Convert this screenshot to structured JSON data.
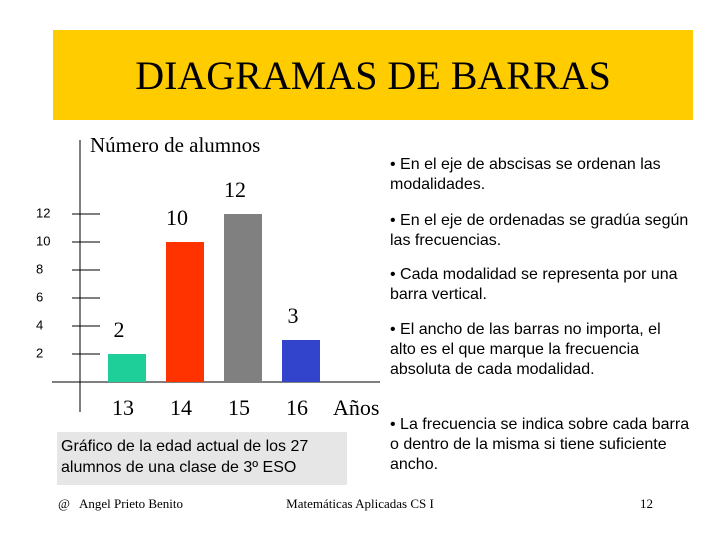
{
  "slide": {
    "title": "DIAGRAMAS DE BARRAS",
    "bullets": [
      "• En el eje de abscisas se ordenan las modalidades.",
      "• En el eje de ordenadas se gradúa según las frecuencias.",
      "• Cada modalidad se representa por una barra vertical.",
      "• El ancho de las barras no importa, el alto es el que marque la frecuencia absoluta de cada modalidad.",
      "• La frecuencia se indica sobre cada barra o dentro de la misma si tiene suficiente ancho."
    ],
    "caption": "Gráfico de la edad actual de los 27 alumnos de una clase de 3º ESO",
    "footer": {
      "author": "@   Angel Prieto Benito",
      "course": "Matemáticas Aplicadas CS I",
      "page": "12"
    }
  },
  "chart_data": {
    "type": "bar",
    "y_label": "Número de alumnos",
    "x_label": "Años",
    "categories": [
      "13",
      "14",
      "15",
      "16"
    ],
    "values": [
      2,
      10,
      12,
      3
    ],
    "colors": [
      "#1fcf9a",
      "#ff3300",
      "#808080",
      "#3344cc"
    ],
    "ylim": [
      0,
      17
    ],
    "yticks": [
      2,
      4,
      6,
      8,
      10,
      12
    ]
  }
}
